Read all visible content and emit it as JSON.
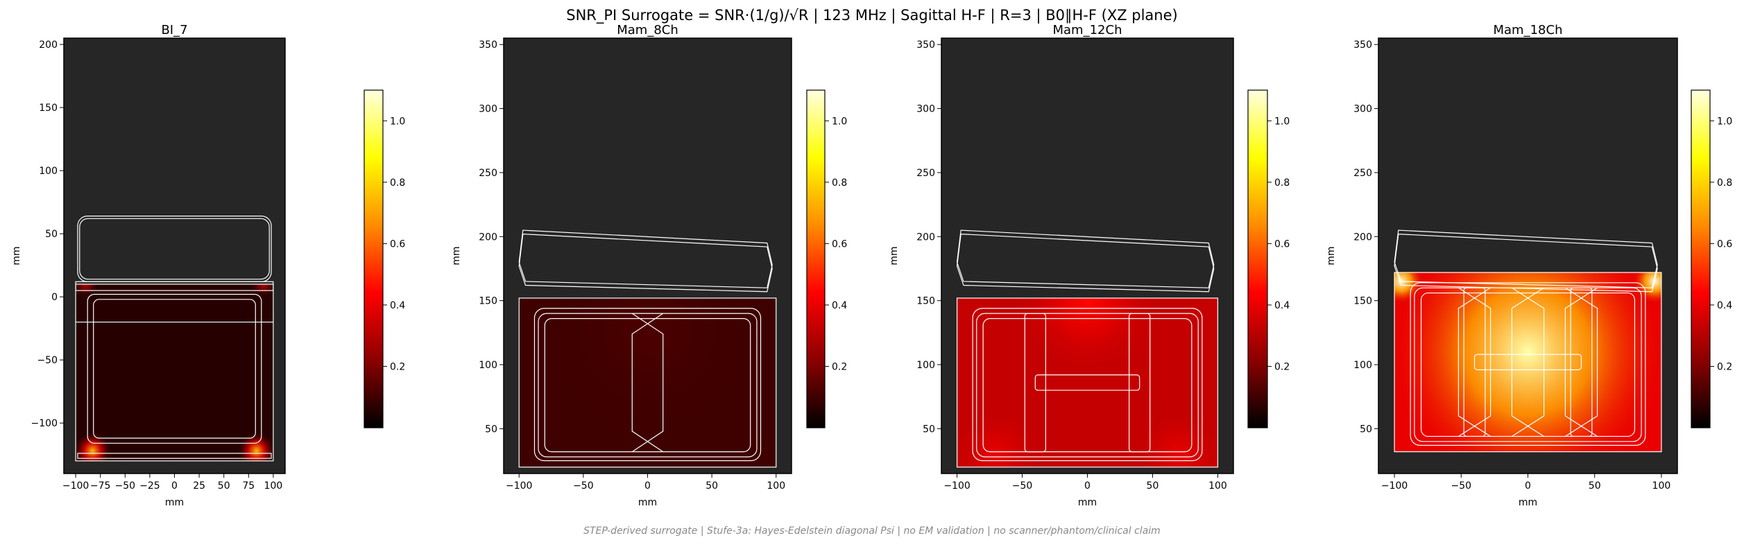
{
  "figure": {
    "title": "SNR_PI Surrogate = SNR·(1/g)/√R | 123 MHz | Sagittal H-F | R=3 | B0∥H-F (XZ plane)",
    "footer": "STEP-derived surrogate | Stufe-3a: Hayes-Edelstein diagonal Psi | no EM validation | no scanner/phantom/clinical claim"
  },
  "colors": {
    "background": "#262626",
    "coil_outline": "#ffffff",
    "colormap": [
      "#000000",
      "#8b0000",
      "#ff0000",
      "#ff8c00",
      "#ffff00",
      "#ffffe0"
    ]
  },
  "chart_data": [
    {
      "type": "heatmap",
      "title": "BI_7",
      "xlabel": "mm",
      "ylabel": "mm",
      "xlim": [
        -112,
        112
      ],
      "ylim": [
        -140,
        205
      ],
      "xticks": [
        -100,
        -75,
        -50,
        -25,
        0,
        25,
        50,
        75,
        100
      ],
      "yticks": [
        -100,
        -50,
        0,
        50,
        100,
        150,
        200
      ],
      "colorbar": {
        "range": [
          0.0,
          1.1
        ],
        "ticks": [
          0.2,
          0.4,
          0.6,
          0.8,
          1.0
        ]
      },
      "field_extent": {
        "x": [
          -100,
          100
        ],
        "y": [
          -130,
          10
        ]
      },
      "field_baseline": 0.06,
      "hotspots": [
        {
          "x": -83,
          "y": -122,
          "value": 0.75,
          "radius": 14
        },
        {
          "x": 83,
          "y": -122,
          "value": 0.75,
          "radius": 14
        },
        {
          "x": -90,
          "y": 10,
          "value": 0.3,
          "radius": 10
        },
        {
          "x": 90,
          "y": 10,
          "value": 0.3,
          "radius": 10
        }
      ]
    },
    {
      "type": "heatmap",
      "title": "Mam_8Ch",
      "xlabel": "mm",
      "ylabel": "mm",
      "xlim": [
        -112,
        112
      ],
      "ylim": [
        15,
        355
      ],
      "xticks": [
        -100,
        -50,
        0,
        50,
        100
      ],
      "yticks": [
        50,
        100,
        150,
        200,
        250,
        300,
        350
      ],
      "colorbar": {
        "range": [
          0.0,
          1.1
        ],
        "ticks": [
          0.2,
          0.4,
          0.6,
          0.8,
          1.0
        ]
      },
      "field_extent": {
        "x": [
          -100,
          100
        ],
        "y": [
          20,
          152
        ]
      },
      "field_baseline": 0.1,
      "hotspots": [
        {
          "x": 0,
          "y": 125,
          "value": 0.12,
          "radius": 60
        }
      ]
    },
    {
      "type": "heatmap",
      "title": "Mam_12Ch",
      "xlabel": "mm",
      "ylabel": "mm",
      "xlim": [
        -112,
        112
      ],
      "ylim": [
        15,
        355
      ],
      "xticks": [
        -100,
        -50,
        0,
        50,
        100
      ],
      "yticks": [
        50,
        100,
        150,
        200,
        250,
        300,
        350
      ],
      "colorbar": {
        "range": [
          0.0,
          1.1
        ],
        "ticks": [
          0.2,
          0.4,
          0.6,
          0.8,
          1.0
        ]
      },
      "field_extent": {
        "x": [
          -100,
          100
        ],
        "y": [
          20,
          152
        ]
      },
      "field_baseline": 0.33,
      "hotspots": [
        {
          "x": 0,
          "y": 150,
          "value": 0.45,
          "radius": 40
        },
        {
          "x": -70,
          "y": 30,
          "value": 0.4,
          "radius": 25
        },
        {
          "x": 70,
          "y": 30,
          "value": 0.4,
          "radius": 25
        }
      ]
    },
    {
      "type": "heatmap",
      "title": "Mam_18Ch",
      "xlabel": "mm",
      "ylabel": "mm",
      "xlim": [
        -112,
        112
      ],
      "ylim": [
        15,
        355
      ],
      "xticks": [
        -100,
        -50,
        0,
        50,
        100
      ],
      "yticks": [
        50,
        100,
        150,
        200,
        250,
        300,
        350
      ],
      "colorbar": {
        "range": [
          0.0,
          1.1
        ],
        "ticks": [
          0.2,
          0.4,
          0.6,
          0.8,
          1.0
        ]
      },
      "field_extent": {
        "x": [
          -100,
          100
        ],
        "y": [
          32,
          172
        ]
      },
      "field_baseline": 0.4,
      "hotspots": [
        {
          "x": 0,
          "y": 110,
          "value": 1.05,
          "radius": 75
        },
        {
          "x": -95,
          "y": 165,
          "value": 1.1,
          "radius": 12
        },
        {
          "x": 95,
          "y": 165,
          "value": 1.1,
          "radius": 12
        }
      ]
    }
  ]
}
